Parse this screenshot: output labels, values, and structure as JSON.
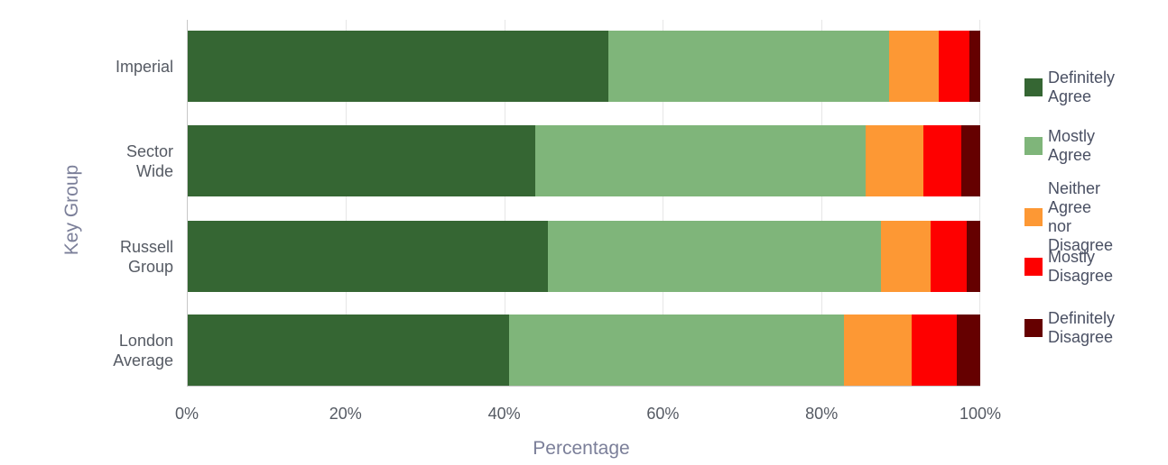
{
  "chart_data": {
    "type": "bar",
    "orientation": "horizontal",
    "stacked": true,
    "percent_stacked": true,
    "title": "",
    "xlabel": "Percentage",
    "ylabel": "Key Group",
    "xlim": [
      0,
      100
    ],
    "x_ticks": [
      "0%",
      "20%",
      "40%",
      "60%",
      "80%",
      "100%"
    ],
    "grid": true,
    "legend_position": "right",
    "categories": [
      "Imperial",
      "Sector Wide",
      "Russell Group",
      "London Average"
    ],
    "category_labels": [
      "Imperial",
      "Sector\nWide",
      "Russell\nGroup",
      "London\nAverage"
    ],
    "series": [
      {
        "name": "Definitely Agree",
        "label": "Definitely\nAgree",
        "color": "#356633",
        "values": [
          53.1,
          43.9,
          45.5,
          40.6
        ]
      },
      {
        "name": "Mostly Agree",
        "label": "Mostly\nAgree",
        "color": "#7fb57a",
        "values": [
          35.4,
          41.7,
          42.0,
          42.2
        ]
      },
      {
        "name": "Neither Agree nor Disagree",
        "label": "Neither\nAgree nor\nDisagree",
        "color": "#fd9834",
        "values": [
          6.3,
          7.2,
          6.3,
          8.6
        ]
      },
      {
        "name": "Mostly Disagree",
        "label": "Mostly\nDisagree",
        "color": "#fe0000",
        "values": [
          3.8,
          4.8,
          4.5,
          5.7
        ]
      },
      {
        "name": "Definitely Disagree",
        "label": "Definitely\nDisagree",
        "color": "#650000",
        "values": [
          1.4,
          2.4,
          1.7,
          2.9
        ]
      }
    ]
  }
}
